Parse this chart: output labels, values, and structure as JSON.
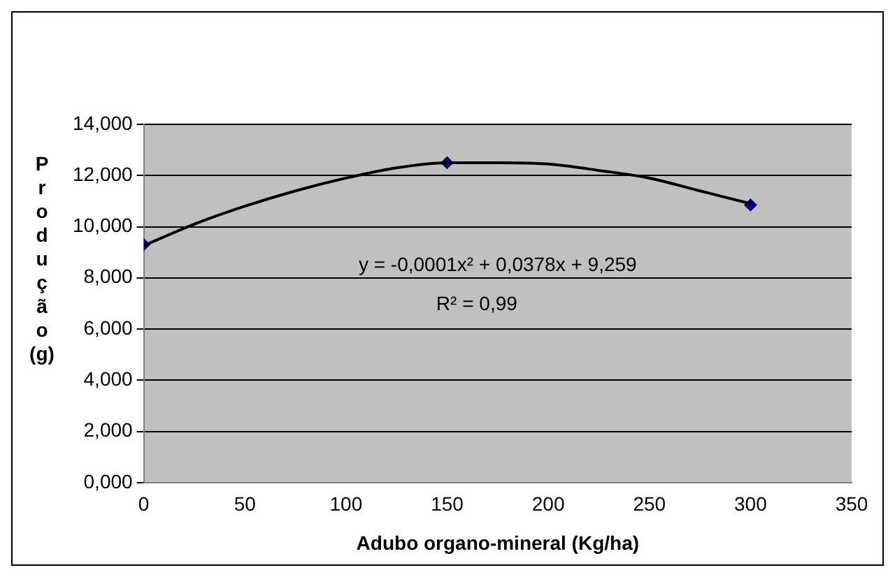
{
  "chart_data": {
    "type": "scatter",
    "xlabel": "Adubo organo-mineral (Kg/ha)",
    "ylabel": "Produção (g)",
    "xlim": [
      0,
      350
    ],
    "xticks": [
      0,
      50,
      100,
      150,
      200,
      250,
      300,
      350
    ],
    "ylim": [
      0,
      14
    ],
    "yticks": [
      {
        "value": 0,
        "label": "0,000"
      },
      {
        "value": 2,
        "label": "2,000"
      },
      {
        "value": 4,
        "label": "4,000"
      },
      {
        "value": 6,
        "label": "6,000"
      },
      {
        "value": 8,
        "label": "8,000"
      },
      {
        "value": 10,
        "label": "10,000"
      },
      {
        "value": 12,
        "label": "12,000"
      },
      {
        "value": 14,
        "label": "14,000"
      }
    ],
    "grid": "y",
    "legend": false,
    "series": [
      {
        "type": "line",
        "color": "#000000",
        "marker": "none",
        "x": [
          0,
          25,
          50,
          75,
          100,
          125,
          150,
          175,
          200,
          225,
          250,
          275,
          300
        ],
        "values": [
          9.26,
          10.1,
          10.8,
          11.4,
          11.9,
          12.3,
          12.5,
          12.5,
          12.45,
          12.2,
          11.9,
          11.4,
          10.9
        ]
      },
      {
        "type": "scatter",
        "color": "#000080",
        "marker": "diamond",
        "x": [
          0,
          150,
          300
        ],
        "values": [
          9.3,
          12.5,
          10.85
        ]
      }
    ],
    "annotations": [
      "y = -0,0001x² + 0,0378x + 9,259",
      "R² = 0,99"
    ]
  }
}
